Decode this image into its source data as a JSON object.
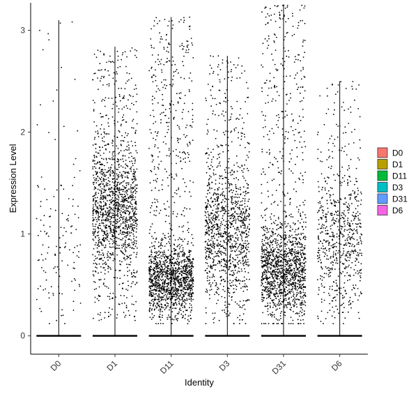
{
  "chart_data": {
    "type": "violin-jitter",
    "xlabel": "Identity",
    "ylabel": "Expression Level",
    "categories": [
      "D0",
      "D1",
      "D11",
      "D3",
      "D31",
      "D6"
    ],
    "ylim": [
      -0.18,
      3.27
    ],
    "yticks": [
      0,
      1,
      2,
      3
    ],
    "series": [
      {
        "name": "D0",
        "color": "#F8766D",
        "max": 3.1,
        "zero_fraction": 0.94,
        "points": 140,
        "dense_center": 0.9,
        "dense_sd": 0.8
      },
      {
        "name": "D1",
        "color": "#B79F00",
        "max": 2.84,
        "zero_fraction": 0.55,
        "points": 1500,
        "dense_center": 1.25,
        "dense_sd": 0.6
      },
      {
        "name": "D11",
        "color": "#00BA38",
        "max": 3.13,
        "zero_fraction": 0.5,
        "points": 1600,
        "dense_center": 0.55,
        "dense_sd": 0.35
      },
      {
        "name": "D3",
        "color": "#00BFC4",
        "max": 2.75,
        "zero_fraction": 0.55,
        "points": 1200,
        "dense_center": 1.0,
        "dense_sd": 0.65
      },
      {
        "name": "D31",
        "color": "#619CFF",
        "max": 3.25,
        "zero_fraction": 0.5,
        "points": 1600,
        "dense_center": 0.65,
        "dense_sd": 0.45
      },
      {
        "name": "D6",
        "color": "#F564E3",
        "max": 2.5,
        "zero_fraction": 0.6,
        "points": 700,
        "dense_center": 0.95,
        "dense_sd": 0.65
      }
    ],
    "legend": {
      "position": "right",
      "entries": [
        "D0",
        "D1",
        "D11",
        "D3",
        "D31",
        "D6"
      ]
    },
    "grid": false
  }
}
